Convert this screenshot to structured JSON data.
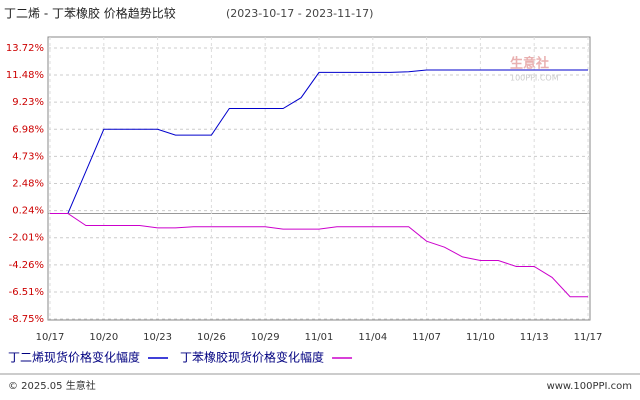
{
  "chart_data": {
    "type": "line",
    "title": "丁二烯 - 丁苯橡胶 价格趋势比较",
    "subtitle": "(2023-10-17 - 2023-11-17)",
    "categories": [
      "10/17",
      null,
      null,
      "10/20",
      null,
      null,
      "10/23",
      null,
      null,
      "10/26",
      null,
      null,
      "10/29",
      null,
      null,
      "11/01",
      null,
      null,
      "11/04",
      null,
      null,
      "11/07",
      null,
      null,
      "11/10",
      null,
      null,
      "11/13",
      null,
      null,
      "11/17"
    ],
    "series": [
      {
        "name": "丁二烯现货价格变化幅度",
        "color": "#0000cc",
        "values": [
          0,
          0,
          3.5,
          6.98,
          6.98,
          6.98,
          6.98,
          6.5,
          6.5,
          6.5,
          8.7,
          8.7,
          8.7,
          8.7,
          9.6,
          11.7,
          11.7,
          11.7,
          11.7,
          11.7,
          11.75,
          11.9,
          11.9,
          11.9,
          11.9,
          11.9,
          11.9,
          11.9,
          11.9,
          11.9,
          11.9
        ]
      },
      {
        "name": "丁苯橡胶现货价格变化幅度",
        "color": "#cc00cc",
        "values": [
          0,
          0,
          -1.0,
          -1.0,
          -1.0,
          -1.0,
          -1.2,
          -1.2,
          -1.1,
          -1.1,
          -1.1,
          -1.1,
          -1.1,
          -1.3,
          -1.3,
          -1.3,
          -1.1,
          -1.1,
          -1.1,
          -1.1,
          -1.1,
          -2.3,
          -2.8,
          -3.6,
          -3.9,
          -3.9,
          -4.4,
          -4.4,
          -5.3,
          -6.9,
          -6.9
        ]
      }
    ],
    "ylim": [
      -8.75,
      13.72
    ],
    "yticks": [
      {
        "value": 13.72,
        "label": "13.72%"
      },
      {
        "value": 11.48,
        "label": "11.48%"
      },
      {
        "value": 9.23,
        "label": "9.23%"
      },
      {
        "value": 6.98,
        "label": "6.98%"
      },
      {
        "value": 4.73,
        "label": "4.73%"
      },
      {
        "value": 2.48,
        "label": "2.48%"
      },
      {
        "value": 0.24,
        "label": "0.24%"
      },
      {
        "value": -2.01,
        "label": "-2.01%"
      },
      {
        "value": -4.26,
        "label": "-4.26%"
      },
      {
        "value": -6.51,
        "label": "-6.51%"
      },
      {
        "value": -8.75,
        "label": "-8.75%"
      }
    ],
    "grid": true,
    "watermark": "生意社",
    "watermark_sub": "100PPI.COM",
    "footer_left": "© 2025.05 生意社",
    "footer_right": "www.100PPI.com"
  }
}
